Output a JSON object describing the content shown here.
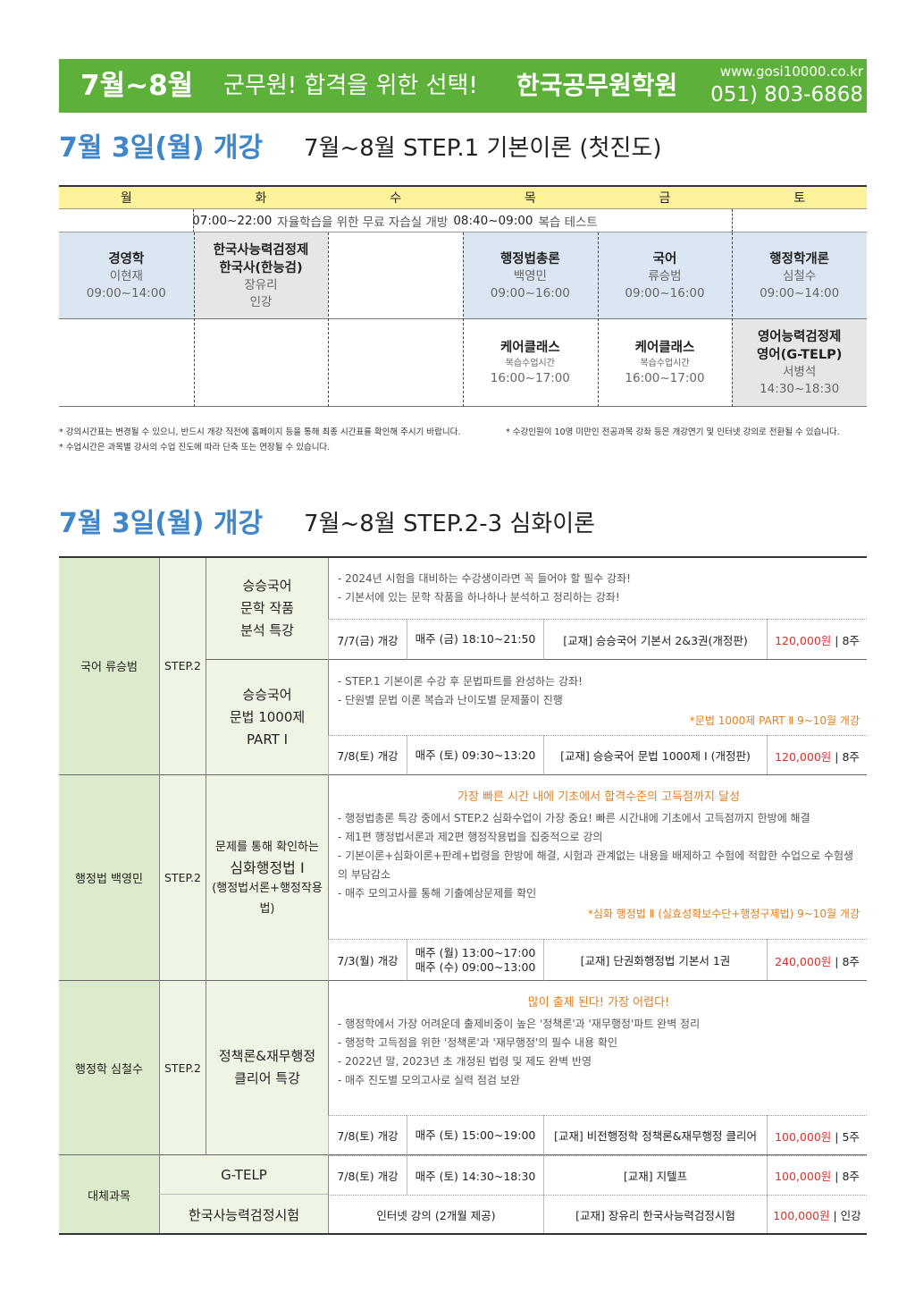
{
  "header": {
    "period": "7월~8월",
    "slogan": "군무원! 합격을 위한 선택!",
    "brand": "한국공무원학원",
    "url": "www.gosi10000.co.kr",
    "phone": "051) 803-6868"
  },
  "step1": {
    "open": "7월 3일(월) 개강",
    "title": "7월~8월 STEP.1 기본이론 (첫진도)",
    "days": [
      "월",
      "화",
      "수",
      "목",
      "금",
      "토"
    ],
    "notice": [
      "07:00~22:00",
      "자율학습을 위한 무료 자습실 개방",
      "08:40~09:00",
      "복습 테스트"
    ],
    "row1": {
      "mon": [
        "경영학",
        "이현재",
        "09:00~14:00"
      ],
      "tue": [
        "한국사능력검정제",
        "한국사(한능검)",
        "장유리",
        "인강"
      ],
      "thu": [
        "행정법총론",
        "백영민",
        "09:00~16:00"
      ],
      "fri": [
        "국어",
        "류승범",
        "09:00~16:00"
      ],
      "sat": [
        "행정학개론",
        "심철수",
        "09:00~14:00"
      ]
    },
    "row2": {
      "thu": [
        "케어클래스",
        "복습수업시간",
        "16:00~17:00"
      ],
      "fri": [
        "케어클래스",
        "복습수업시간",
        "16:00~17:00"
      ],
      "sat": [
        "영어능력검정제",
        "영어(G-TELP)",
        "서병석",
        "14:30~18:30"
      ]
    },
    "notes": [
      "* 강의시간표는 변경될 수 있으니, 반드시 개강 직전에 홈페이지 등을 통해 최종 시간표를 확인해 주시기 바랍니다.",
      "* 수강인원이 10명 미만인 전공과목 강좌 등은 개강연기 및 인터넷 강의로 전환될 수 있습니다.",
      "* 수업시간은 과목별 강사의 수업 진도에 따라 단축 또는 연장될 수 있습니다."
    ]
  },
  "step2": {
    "open": "7월 3일(월) 개강",
    "title": "7월~8월 STEP.2-3 심화이론",
    "groups": [
      {
        "subject": "국어 류승범",
        "step": "STEP.2",
        "courses": [
          {
            "name": [
              "승승국어",
              "문학 작품",
              "분석 특강"
            ],
            "desc": [
              "- 2024년 시험을 대비하는 수강생이라면 꼭 들어야 할 필수 강좌!",
              "- 기본서에 있는 문학 작품을 하나하나 분석하고 정리하는 강좌!"
            ],
            "date": "7/7(금) 개강",
            "time": [
              "매주 (금) 18:10~21:50"
            ],
            "book": "[교재] 승승국어 기본서 2&3권(개정판)",
            "price": "120,000원",
            "term": "| 8주"
          },
          {
            "name": [
              "승승국어",
              "문법 1000제",
              "PART Ⅰ"
            ],
            "desc": [
              "- STEP.1 기본이론 수강 후 문법파트를 완성하는 강좌!",
              "- 단원별 문법 이론 복습과 난이도별 문제풀이 진행"
            ],
            "note": "*문법 1000제 PART Ⅱ 9~10월 개강",
            "date": "7/8(토) 개강",
            "time": [
              "매주 (토) 09:30~13:20"
            ],
            "book": "[교재] 승승국어 문법 1000제 Ⅰ (개정판)",
            "price": "120,000원",
            "term": "| 8주"
          }
        ]
      },
      {
        "subject": "행정법 백영민",
        "step": "STEP.2",
        "courses": [
          {
            "name": [
              "문제를 통해 확인하는",
              "심화행정법 Ⅰ",
              "(행정법서론+행정작용법)"
            ],
            "headline": "가장 빠른 시간 내에 기초에서 합격수준의 고득점까지 달성",
            "desc": [
              "- 행정법총론 특강 중에서 STEP.2 심화수업이 가장 중요! 빠른 시간내에 기초에서 고득점까지 한방에 해결",
              "- 제1편 행정법서론과 제2편 행정작용법을 집중적으로 강의",
              "- 기본이론+심화이론+판례+법령을 한방에 해결, 시험과 관계없는 내용을 배제하고 수험에 적합한 수업으로 수험생의 부담감소",
              "- 매주 모의고사를 통해 기출예상문제를 확인"
            ],
            "note": "*심화 행정법 Ⅱ (실효성확보수단+행정구제법) 9~10월 개강",
            "date": "7/3(월) 개강",
            "time": [
              "매주 (월) 13:00~17:00",
              "매주 (수) 09:00~13:00"
            ],
            "book": "[교재] 단권화행정법 기본서 1권",
            "price": "240,000원",
            "term": "| 8주"
          }
        ]
      },
      {
        "subject": "행정학 심철수",
        "step": "STEP.2",
        "courses": [
          {
            "name": [
              "정책론&재무행정",
              "클리어 특강"
            ],
            "headline": "많이 출제 된다! 가장 어렵다!",
            "desc": [
              "- 행정학에서 가장 어려운데 출제비중이 높은 '정책론'과 '재무행정'파트 완벽 정리",
              "- 행정학 고득점을 위한 '정책론'과 '재무행정'의 필수 내용 확인",
              "- 2022년 말, 2023년 초 개정된 법령 및 제도 완벽 반영",
              "- 매주 진도별 모의고사로 실력 점검 보완"
            ],
            "date": "7/8(토) 개강",
            "time": [
              "매주 (토) 15:00~19:00"
            ],
            "book": "[교재] 비전행정학 정책론&재무행정 클리어",
            "price": "100,000원",
            "term": "| 5주"
          }
        ]
      }
    ],
    "alternative": {
      "subject": "대체과목",
      "courses": [
        {
          "name": "G-TELP",
          "date": "7/8(토) 개강",
          "time": "매주 (토) 14:30~18:30",
          "book": "[교재] 지텔프",
          "price": "100,000원",
          "term": "| 8주"
        },
        {
          "name": "한국사능력검정시험",
          "schedule": "인터넷 강의 (2개월 제공)",
          "book": "[교재] 장유리 한국사능력검정시험",
          "price": "100,000원",
          "term": "| 인강"
        }
      ]
    }
  }
}
